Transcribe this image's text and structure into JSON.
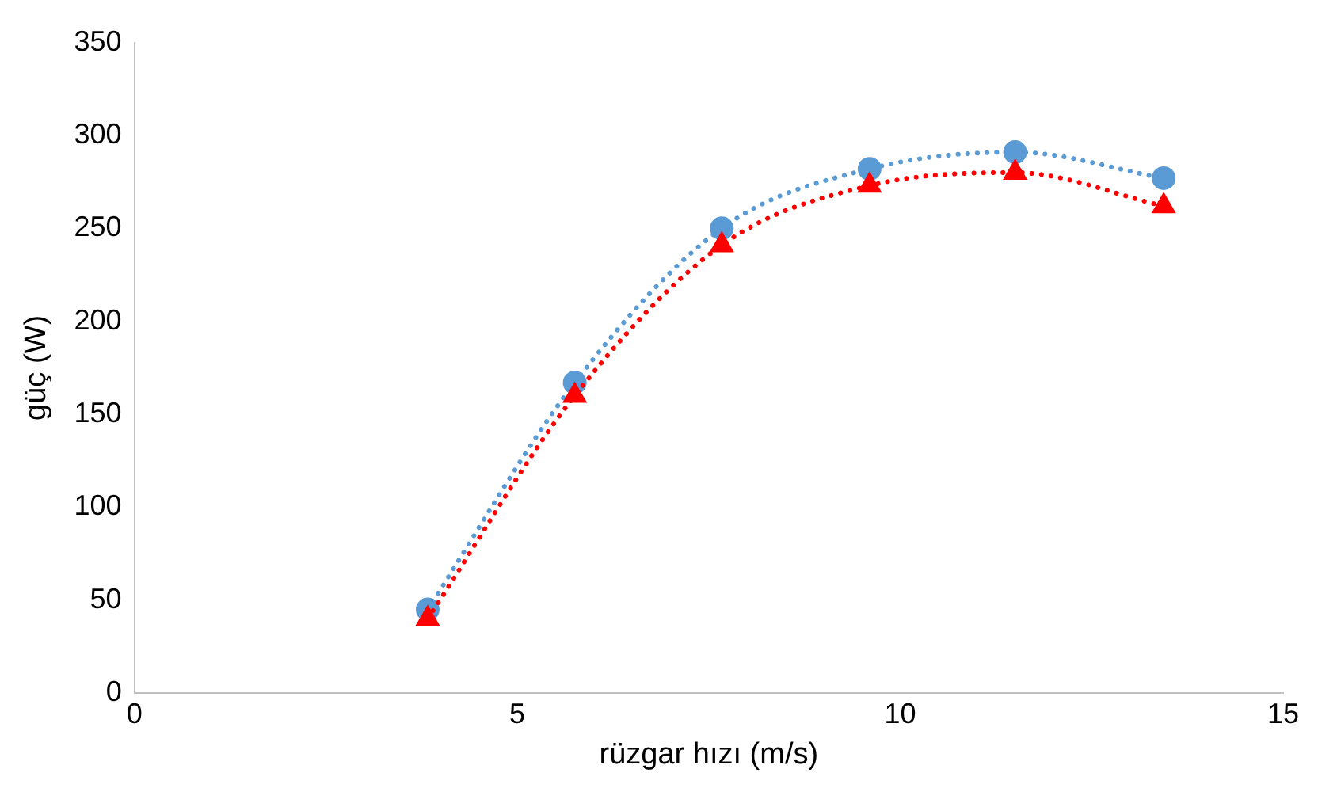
{
  "chart_data": {
    "type": "line",
    "xlabel": "rüzgar hızı (m/s)",
    "ylabel": "güç (W)",
    "xlim": [
      0,
      15
    ],
    "xticks": [
      0,
      5,
      10,
      15
    ],
    "ylim": [
      0,
      350
    ],
    "yticks": [
      0,
      50,
      100,
      150,
      200,
      250,
      300,
      350
    ],
    "grid": false,
    "legend": false,
    "line_style": "dotted",
    "series": [
      {
        "color": "#5b9bd5",
        "marker": "circle",
        "x": [
          3.83,
          5.75,
          7.67,
          9.6,
          11.5,
          13.44
        ],
        "values": [
          45,
          167,
          250,
          282,
          291,
          277
        ]
      },
      {
        "color": "#ff0000",
        "marker": "triangle",
        "x": [
          3.83,
          5.75,
          7.67,
          9.6,
          11.5,
          13.44
        ],
        "values": [
          40,
          160,
          241,
          273,
          280,
          262
        ]
      }
    ]
  }
}
